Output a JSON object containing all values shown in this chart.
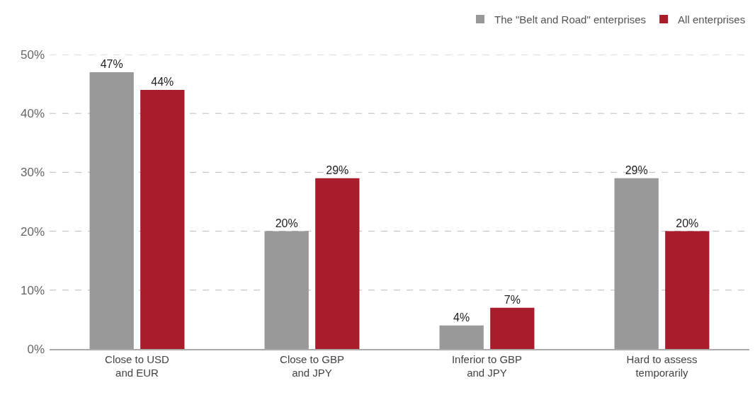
{
  "chart_data": {
    "type": "bar",
    "categories": [
      "Close to USD\nand EUR",
      "Close to GBP\nand JPY",
      "Inferior to GBP\nand JPY",
      "Hard to assess\ntemporarily"
    ],
    "series": [
      {
        "name": "The \"Belt and Road\" enterprises",
        "color": "#999999",
        "values": [
          47,
          20,
          4,
          29
        ],
        "value_labels": [
          "47%",
          "20%",
          "4%",
          "29%"
        ]
      },
      {
        "name": "All enterprises",
        "color": "#a81c2b",
        "values": [
          44,
          29,
          7,
          20
        ],
        "value_labels": [
          "44%",
          "29%",
          "7%",
          "20%"
        ]
      }
    ],
    "ylim": [
      0,
      50
    ],
    "yticks": [
      {
        "value": 0,
        "label": "0%"
      },
      {
        "value": 10,
        "label": "10%"
      },
      {
        "value": 20,
        "label": "20%"
      },
      {
        "value": 30,
        "label": "30%"
      },
      {
        "value": 40,
        "label": "40%"
      },
      {
        "value": 50,
        "label": "50%"
      }
    ],
    "grid": "y",
    "legend": "top right"
  }
}
